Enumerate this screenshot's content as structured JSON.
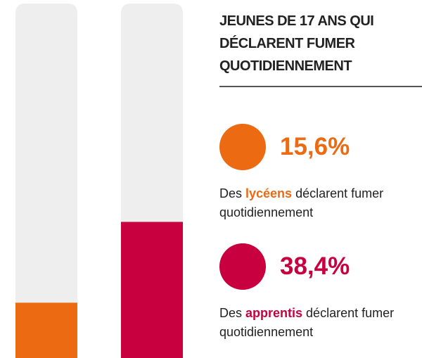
{
  "chart_data": {
    "type": "bar",
    "title": "JEUNES DE 17 ANS QUI DÉCLARENT FUMER QUOTIDIENNEMENT",
    "categories": [
      "lycéens",
      "apprentis"
    ],
    "values": [
      15.6,
      38.4
    ],
    "value_labels": [
      "15,6%",
      "38,4%"
    ],
    "colors": [
      "#ec6a12",
      "#c8003f"
    ],
    "descriptions": [
      {
        "before": "Des ",
        "after": " déclarent fumer quotidiennement"
      },
      {
        "before": "Des ",
        "after": " déclarent fumer quotidiennement"
      }
    ],
    "ylim": [
      0,
      100
    ]
  }
}
